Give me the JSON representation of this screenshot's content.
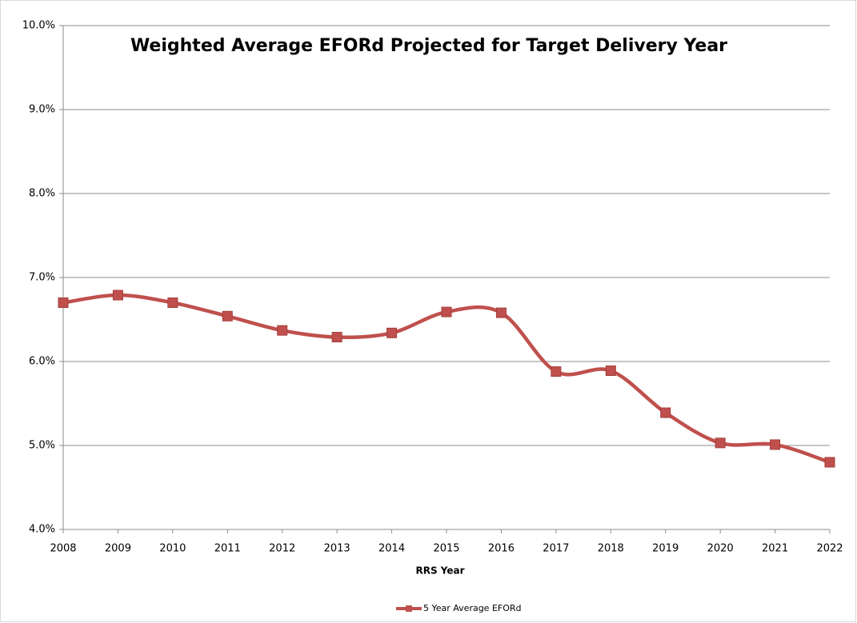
{
  "chart_data": {
    "type": "line",
    "title": "Weighted Average EFORd Projected for Target Delivery Year",
    "x_label": "RRS Year",
    "categories": [
      "2008",
      "2009",
      "2010",
      "2011",
      "2012",
      "2013",
      "2014",
      "2015",
      "2016",
      "2017",
      "2018",
      "2019",
      "2020",
      "2021",
      "2022"
    ],
    "series": [
      {
        "name": "5 Year Average EFORd",
        "color": "#c0504d",
        "values": [
          6.7,
          6.79,
          6.7,
          6.54,
          6.37,
          6.29,
          6.34,
          6.59,
          6.58,
          5.88,
          5.89,
          5.39,
          5.03,
          5.01,
          4.8
        ]
      }
    ],
    "ylim": [
      4,
      10
    ],
    "yticks": [
      {
        "value": 4,
        "label": "4.0%"
      },
      {
        "value": 5,
        "label": "5.0%"
      },
      {
        "value": 6,
        "label": "6.0%"
      },
      {
        "value": 7,
        "label": "7.0%"
      },
      {
        "value": 8,
        "label": "8.0%"
      },
      {
        "value": 9,
        "label": "9.0%"
      },
      {
        "value": 10,
        "label": "10.0%"
      }
    ],
    "grid": true,
    "smooth": true,
    "legend": "bottom"
  }
}
